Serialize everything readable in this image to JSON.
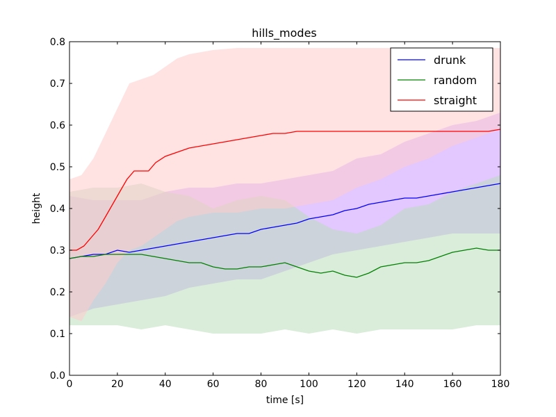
{
  "chart_data": {
    "type": "line",
    "title": "hills_modes",
    "xlabel": "time [s]",
    "ylabel": "height",
    "xlim": [
      0,
      180
    ],
    "ylim": [
      0.0,
      0.8
    ],
    "x_ticks": [
      "0",
      "20",
      "40",
      "60",
      "80",
      "100",
      "120",
      "140",
      "160",
      "180"
    ],
    "y_ticks": [
      "0.0",
      "0.1",
      "0.2",
      "0.3",
      "0.4",
      "0.5",
      "0.6",
      "0.7",
      "0.8"
    ],
    "grid": false,
    "legend_position": "top-right",
    "series": [
      {
        "name": "drunk",
        "color": "#0000ff",
        "band_color": "#cc99ff",
        "mean": [
          [
            0,
            0.28
          ],
          [
            5,
            0.285
          ],
          [
            10,
            0.29
          ],
          [
            15,
            0.29
          ],
          [
            20,
            0.3
          ],
          [
            25,
            0.295
          ],
          [
            30,
            0.3
          ],
          [
            35,
            0.305
          ],
          [
            40,
            0.31
          ],
          [
            45,
            0.315
          ],
          [
            50,
            0.32
          ],
          [
            55,
            0.325
          ],
          [
            60,
            0.33
          ],
          [
            65,
            0.335
          ],
          [
            70,
            0.34
          ],
          [
            75,
            0.34
          ],
          [
            80,
            0.35
          ],
          [
            85,
            0.355
          ],
          [
            90,
            0.36
          ],
          [
            95,
            0.365
          ],
          [
            100,
            0.375
          ],
          [
            105,
            0.38
          ],
          [
            110,
            0.385
          ],
          [
            115,
            0.395
          ],
          [
            120,
            0.4
          ],
          [
            125,
            0.41
          ],
          [
            130,
            0.415
          ],
          [
            135,
            0.42
          ],
          [
            140,
            0.425
          ],
          [
            145,
            0.425
          ],
          [
            150,
            0.43
          ],
          [
            155,
            0.435
          ],
          [
            160,
            0.44
          ],
          [
            165,
            0.445
          ],
          [
            170,
            0.45
          ],
          [
            175,
            0.455
          ],
          [
            180,
            0.46
          ]
        ],
        "upper": [
          [
            0,
            0.43
          ],
          [
            10,
            0.42
          ],
          [
            20,
            0.42
          ],
          [
            30,
            0.42
          ],
          [
            40,
            0.44
          ],
          [
            50,
            0.45
          ],
          [
            60,
            0.45
          ],
          [
            70,
            0.46
          ],
          [
            80,
            0.46
          ],
          [
            90,
            0.47
          ],
          [
            100,
            0.48
          ],
          [
            110,
            0.49
          ],
          [
            120,
            0.52
          ],
          [
            130,
            0.53
          ],
          [
            140,
            0.56
          ],
          [
            150,
            0.58
          ],
          [
            160,
            0.6
          ],
          [
            170,
            0.61
          ],
          [
            180,
            0.63
          ]
        ],
        "lower": [
          [
            0,
            0.14
          ],
          [
            10,
            0.16
          ],
          [
            20,
            0.17
          ],
          [
            30,
            0.18
          ],
          [
            40,
            0.19
          ],
          [
            50,
            0.21
          ],
          [
            60,
            0.22
          ],
          [
            70,
            0.23
          ],
          [
            80,
            0.23
          ],
          [
            90,
            0.25
          ],
          [
            100,
            0.27
          ],
          [
            110,
            0.29
          ],
          [
            120,
            0.3
          ],
          [
            130,
            0.31
          ],
          [
            140,
            0.32
          ],
          [
            150,
            0.33
          ],
          [
            160,
            0.34
          ],
          [
            170,
            0.34
          ],
          [
            180,
            0.34
          ]
        ]
      },
      {
        "name": "random",
        "color": "#008000",
        "band_color": "#bbddbb",
        "mean": [
          [
            0,
            0.28
          ],
          [
            5,
            0.285
          ],
          [
            10,
            0.285
          ],
          [
            15,
            0.29
          ],
          [
            20,
            0.29
          ],
          [
            25,
            0.29
          ],
          [
            30,
            0.29
          ],
          [
            35,
            0.285
          ],
          [
            40,
            0.28
          ],
          [
            45,
            0.275
          ],
          [
            50,
            0.27
          ],
          [
            55,
            0.27
          ],
          [
            60,
            0.26
          ],
          [
            65,
            0.255
          ],
          [
            70,
            0.255
          ],
          [
            75,
            0.26
          ],
          [
            80,
            0.26
          ],
          [
            85,
            0.265
          ],
          [
            90,
            0.27
          ],
          [
            95,
            0.26
          ],
          [
            100,
            0.25
          ],
          [
            105,
            0.245
          ],
          [
            110,
            0.25
          ],
          [
            115,
            0.24
          ],
          [
            120,
            0.235
          ],
          [
            125,
            0.245
          ],
          [
            130,
            0.26
          ],
          [
            135,
            0.265
          ],
          [
            140,
            0.27
          ],
          [
            145,
            0.27
          ],
          [
            150,
            0.275
          ],
          [
            155,
            0.285
          ],
          [
            160,
            0.295
          ],
          [
            165,
            0.3
          ],
          [
            170,
            0.305
          ],
          [
            175,
            0.3
          ],
          [
            180,
            0.3
          ]
        ],
        "upper": [
          [
            0,
            0.44
          ],
          [
            10,
            0.45
          ],
          [
            20,
            0.45
          ],
          [
            30,
            0.46
          ],
          [
            40,
            0.44
          ],
          [
            50,
            0.43
          ],
          [
            60,
            0.4
          ],
          [
            70,
            0.42
          ],
          [
            80,
            0.43
          ],
          [
            90,
            0.42
          ],
          [
            100,
            0.38
          ],
          [
            110,
            0.35
          ],
          [
            120,
            0.34
          ],
          [
            130,
            0.36
          ],
          [
            140,
            0.4
          ],
          [
            150,
            0.41
          ],
          [
            160,
            0.44
          ],
          [
            170,
            0.46
          ],
          [
            180,
            0.48
          ]
        ],
        "lower": [
          [
            0,
            0.12
          ],
          [
            10,
            0.12
          ],
          [
            20,
            0.12
          ],
          [
            30,
            0.11
          ],
          [
            40,
            0.12
          ],
          [
            50,
            0.11
          ],
          [
            60,
            0.1
          ],
          [
            70,
            0.1
          ],
          [
            80,
            0.1
          ],
          [
            90,
            0.11
          ],
          [
            100,
            0.1
          ],
          [
            110,
            0.11
          ],
          [
            120,
            0.1
          ],
          [
            130,
            0.11
          ],
          [
            140,
            0.11
          ],
          [
            150,
            0.11
          ],
          [
            160,
            0.11
          ],
          [
            170,
            0.12
          ],
          [
            180,
            0.12
          ]
        ]
      },
      {
        "name": "straight",
        "color": "#ff0000",
        "band_color": "#ffcccc",
        "mean": [
          [
            0,
            0.3
          ],
          [
            3,
            0.3
          ],
          [
            6,
            0.31
          ],
          [
            9,
            0.33
          ],
          [
            12,
            0.35
          ],
          [
            15,
            0.38
          ],
          [
            18,
            0.41
          ],
          [
            21,
            0.44
          ],
          [
            24,
            0.47
          ],
          [
            27,
            0.49
          ],
          [
            30,
            0.49
          ],
          [
            33,
            0.49
          ],
          [
            36,
            0.51
          ],
          [
            40,
            0.525
          ],
          [
            45,
            0.535
          ],
          [
            50,
            0.545
          ],
          [
            55,
            0.55
          ],
          [
            60,
            0.555
          ],
          [
            65,
            0.56
          ],
          [
            70,
            0.565
          ],
          [
            75,
            0.57
          ],
          [
            80,
            0.575
          ],
          [
            85,
            0.58
          ],
          [
            90,
            0.58
          ],
          [
            95,
            0.585
          ],
          [
            100,
            0.585
          ],
          [
            105,
            0.585
          ],
          [
            110,
            0.585
          ],
          [
            115,
            0.585
          ],
          [
            120,
            0.585
          ],
          [
            125,
            0.585
          ],
          [
            130,
            0.585
          ],
          [
            135,
            0.585
          ],
          [
            140,
            0.585
          ],
          [
            145,
            0.585
          ],
          [
            150,
            0.585
          ],
          [
            155,
            0.585
          ],
          [
            160,
            0.585
          ],
          [
            165,
            0.585
          ],
          [
            170,
            0.585
          ],
          [
            175,
            0.585
          ],
          [
            180,
            0.59
          ]
        ],
        "upper": [
          [
            0,
            0.47
          ],
          [
            5,
            0.48
          ],
          [
            10,
            0.52
          ],
          [
            15,
            0.58
          ],
          [
            20,
            0.64
          ],
          [
            25,
            0.7
          ],
          [
            30,
            0.71
          ],
          [
            35,
            0.72
          ],
          [
            40,
            0.74
          ],
          [
            45,
            0.76
          ],
          [
            50,
            0.77
          ],
          [
            60,
            0.78
          ],
          [
            70,
            0.785
          ],
          [
            80,
            0.785
          ],
          [
            90,
            0.785
          ],
          [
            100,
            0.785
          ],
          [
            110,
            0.785
          ],
          [
            120,
            0.785
          ],
          [
            130,
            0.785
          ],
          [
            140,
            0.785
          ],
          [
            150,
            0.785
          ],
          [
            160,
            0.785
          ],
          [
            170,
            0.785
          ],
          [
            180,
            0.785
          ]
        ],
        "lower": [
          [
            0,
            0.14
          ],
          [
            5,
            0.13
          ],
          [
            10,
            0.18
          ],
          [
            15,
            0.22
          ],
          [
            20,
            0.27
          ],
          [
            25,
            0.3
          ],
          [
            30,
            0.31
          ],
          [
            35,
            0.33
          ],
          [
            40,
            0.35
          ],
          [
            45,
            0.37
          ],
          [
            50,
            0.38
          ],
          [
            60,
            0.39
          ],
          [
            70,
            0.39
          ],
          [
            80,
            0.4
          ],
          [
            90,
            0.4
          ],
          [
            100,
            0.41
          ],
          [
            110,
            0.42
          ],
          [
            120,
            0.45
          ],
          [
            130,
            0.47
          ],
          [
            140,
            0.5
          ],
          [
            150,
            0.52
          ],
          [
            160,
            0.55
          ],
          [
            170,
            0.57
          ],
          [
            180,
            0.59
          ]
        ]
      }
    ]
  }
}
